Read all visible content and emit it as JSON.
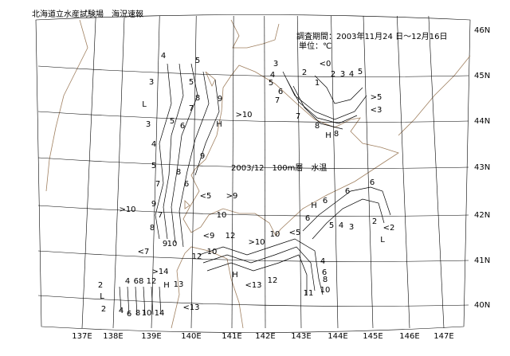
{
  "header": {
    "title": "北海道立水産試験場　海況速報",
    "period": "調査期間：2003年11月24 日～12月16日",
    "unit": "単位：℃"
  },
  "map": {
    "label": "2003/12　100m層　水温",
    "longitudes": [
      "137E",
      "138E",
      "139E",
      "140E",
      "141E",
      "142E",
      "143E",
      "144E",
      "145E",
      "146E",
      "147E"
    ],
    "latitudes": [
      "46N",
      "45N",
      "44N",
      "43N",
      "42N",
      "41N",
      "40N"
    ],
    "contour_labels": [
      "4",
      "5",
      "3",
      "L",
      "5",
      "8",
      "9",
      "7",
      "3",
      "5",
      "6",
      "H",
      ">10",
      "4",
      "9",
      "5",
      "8",
      "7",
      "6",
      "<5",
      ">9",
      ">10",
      "9",
      "7",
      "10",
      "8",
      "<9",
      "12",
      "9",
      "10",
      ">10",
      "10",
      "<5",
      "<7",
      "12",
      "10",
      ">14",
      "H",
      "13",
      "H",
      "<13",
      "12",
      "<13",
      "2",
      "L",
      "2",
      "4",
      "68",
      "12",
      "4",
      "6",
      "8",
      "10",
      "14",
      "3",
      "<0",
      "4",
      "2",
      "1",
      "2",
      "3",
      "4",
      "5",
      "5",
      "6",
      "7",
      "7",
      "8",
      "H",
      "8",
      ">5",
      "<3",
      "6",
      "6",
      "H",
      "6",
      "6",
      "5",
      "4",
      "3",
      "2",
      "<2",
      "L",
      "4",
      "6",
      "8",
      "10",
      "11"
    ]
  }
}
